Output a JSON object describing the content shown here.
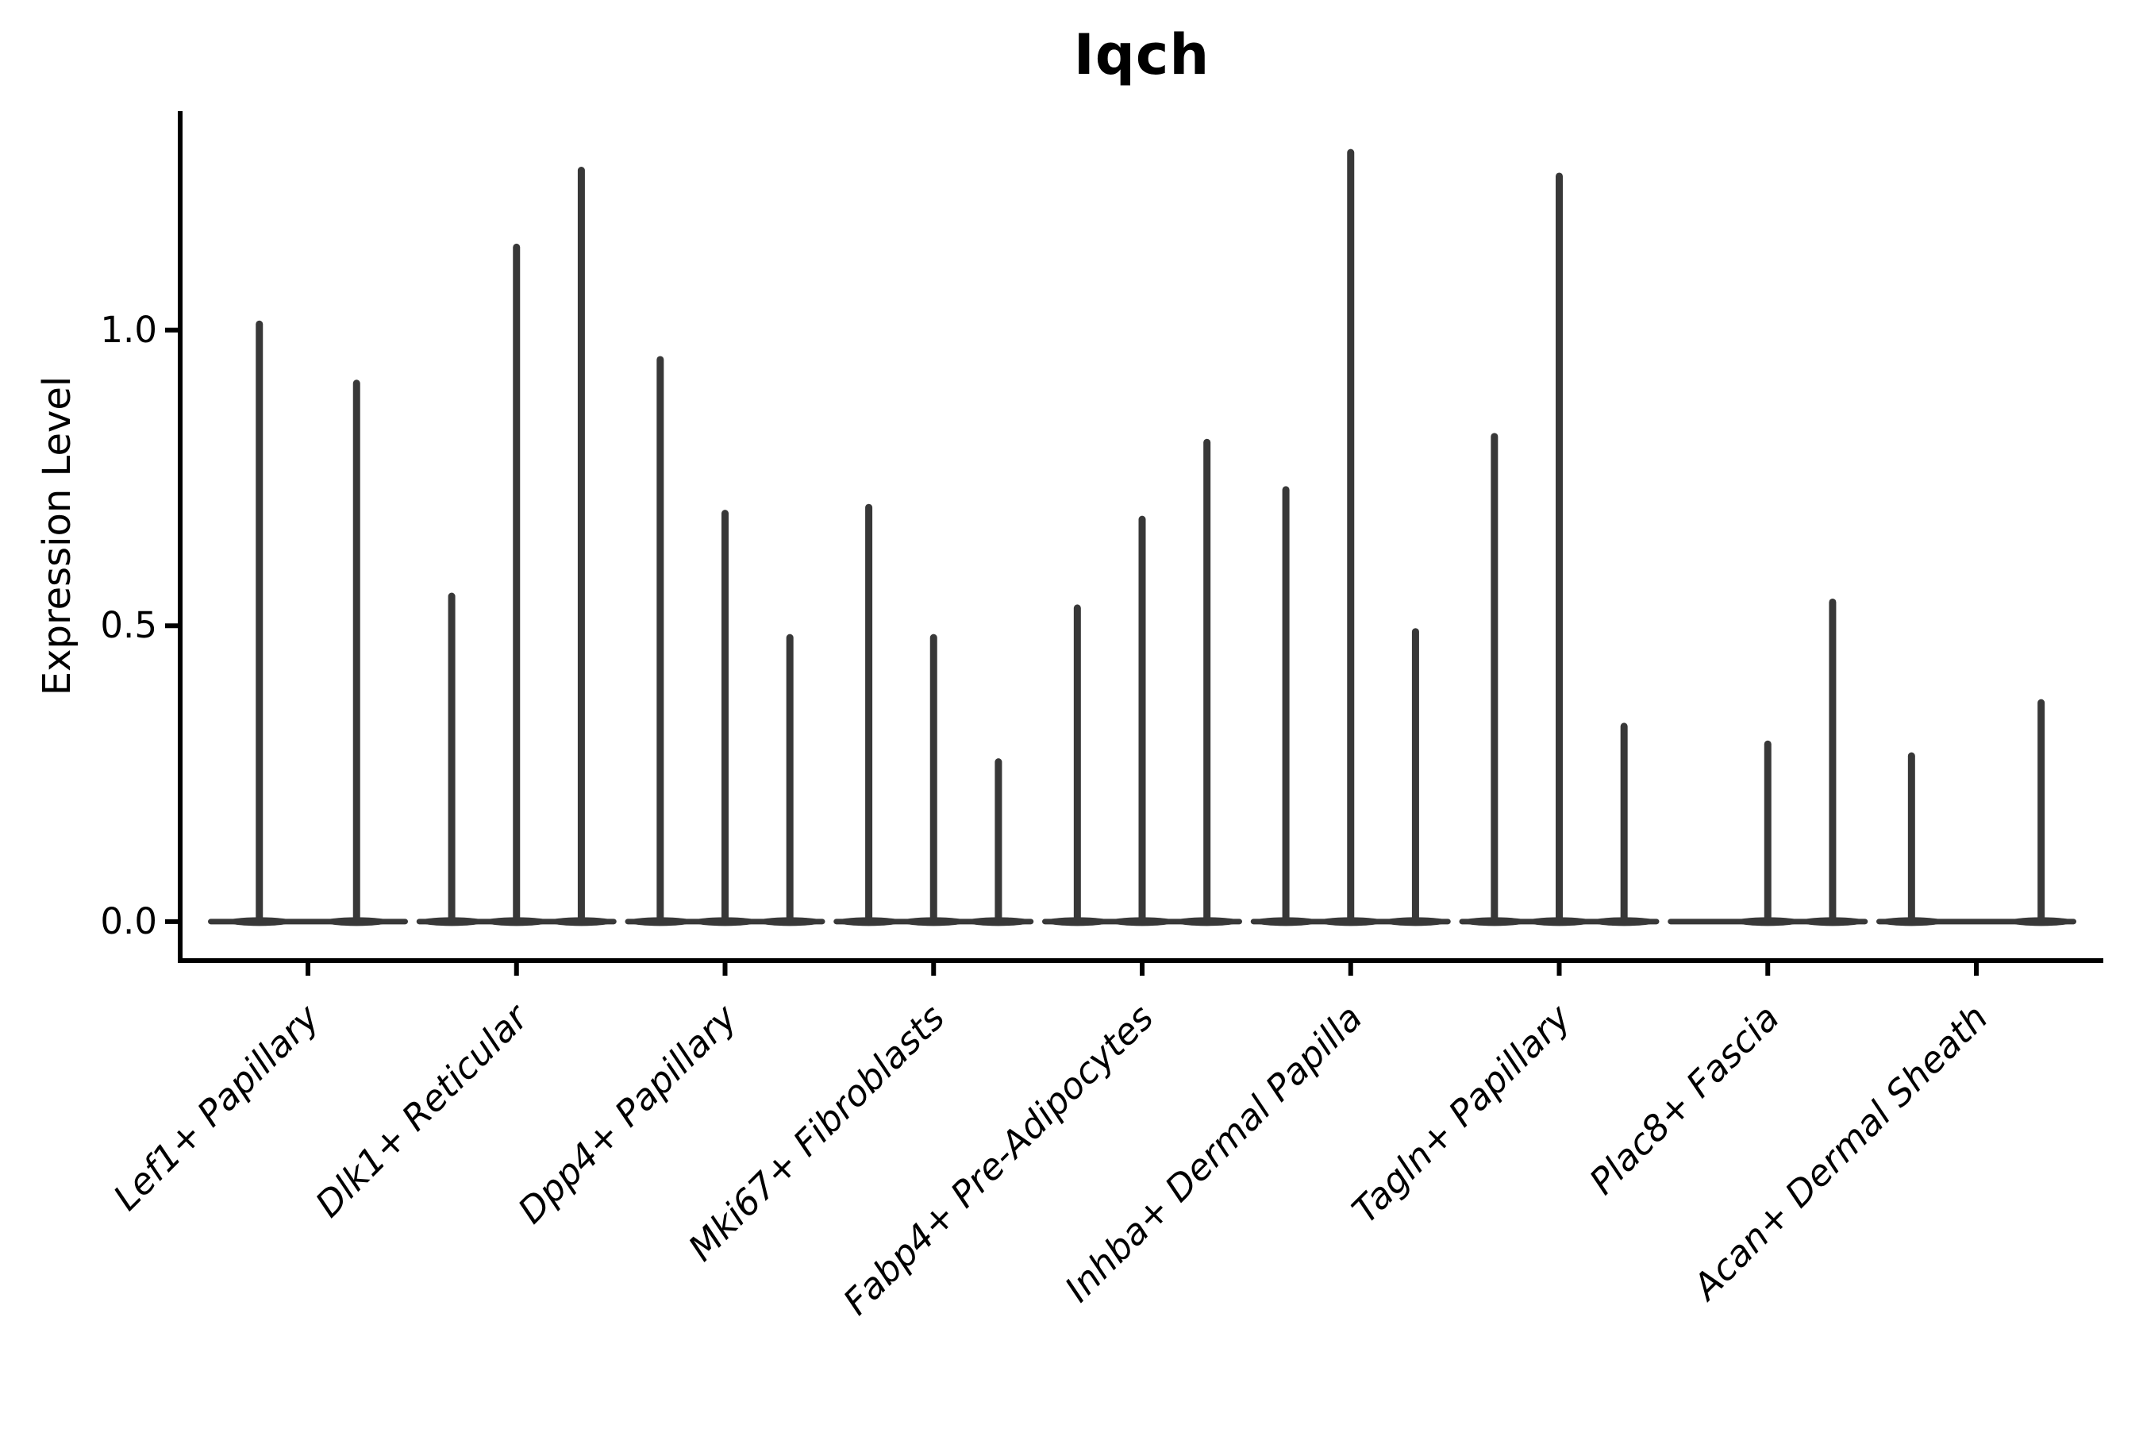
{
  "figure": {
    "title": "Iqch",
    "background": "#ffffff"
  },
  "colors": {
    "violin": "#383838",
    "axis": "#000000",
    "text": "#000000"
  },
  "chart_data": {
    "type": "violin",
    "title": "Iqch",
    "xlabel": "",
    "ylabel": "Expression Level",
    "ytick_labels": [
      "0.0",
      "0.5",
      "1.0"
    ],
    "ytick_values": [
      0.0,
      0.5,
      1.0
    ],
    "ylim": [
      -0.066,
      1.37
    ],
    "grid": false,
    "legend": false,
    "x_tick_rotation_deg": 45,
    "categories": [
      "Lef1+ Papillary",
      "Dlk1+ Reticular",
      "Dpp4+ Papillary",
      "Mki67+ Fibroblasts",
      "Fabp4+ Pre-Adipocytes",
      "Inhba+ Dermal Papilla",
      "Tagln+ Papillary",
      "Plac8+ Fascia",
      "Acan+ Dermal Sheath"
    ],
    "groups": [
      {
        "category": "Lef1+ Papillary",
        "violin_maxima": [
          1.01,
          0.91
        ]
      },
      {
        "category": "Dlk1+ Reticular",
        "violin_maxima": [
          0.55,
          1.14,
          1.27
        ]
      },
      {
        "category": "Dpp4+ Papillary",
        "violin_maxima": [
          0.95,
          0.69,
          0.48
        ]
      },
      {
        "category": "Mki67+ Fibroblasts",
        "violin_maxima": [
          0.7,
          0.48,
          0.27
        ]
      },
      {
        "category": "Fabp4+ Pre-Adipocytes",
        "violin_maxima": [
          0.53,
          0.68,
          0.81
        ]
      },
      {
        "category": "Inhba+ Dermal Papilla",
        "violin_maxima": [
          0.73,
          1.3,
          0.49
        ]
      },
      {
        "category": "Tagln+ Papillary",
        "violin_maxima": [
          0.82,
          1.26,
          0.33
        ]
      },
      {
        "category": "Plac8+ Fascia",
        "violin_maxima": [
          0.0,
          0.3,
          0.54
        ]
      },
      {
        "category": "Acan+ Dermal Sheath",
        "violin_maxima": [
          0.28,
          0.0,
          0.37
        ]
      }
    ]
  }
}
